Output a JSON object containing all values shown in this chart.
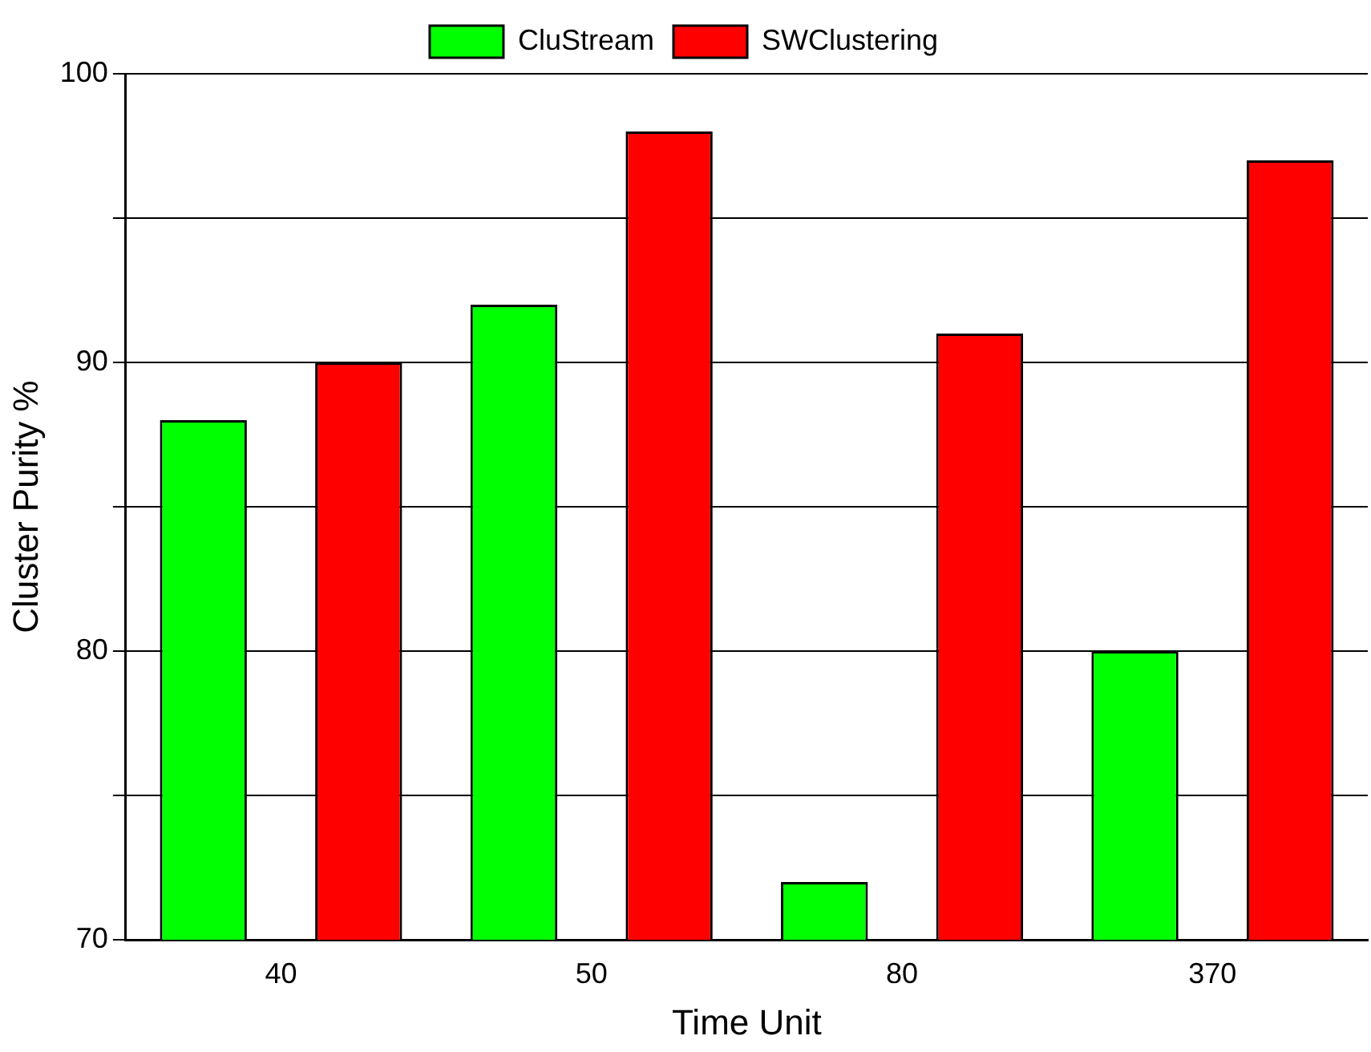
{
  "chart_data": {
    "type": "bar",
    "xlabel": "Time Unit",
    "ylabel": "Cluster Purity %",
    "categories": [
      "40",
      "50",
      "80",
      "370"
    ],
    "series": [
      {
        "name": "CluStream",
        "color": "#00ff00",
        "values": [
          88,
          92,
          72,
          80
        ]
      },
      {
        "name": "SWClustering",
        "color": "#ff0000",
        "values": [
          90,
          98,
          91,
          97
        ]
      }
    ],
    "ylim": [
      70,
      100
    ],
    "yticks": [
      70,
      {
        "value": 75,
        "label": null
      },
      80,
      {
        "value": 85,
        "label": null
      },
      90,
      {
        "value": 95,
        "label": null
      },
      100
    ],
    "grid": "y",
    "legend": "top"
  }
}
